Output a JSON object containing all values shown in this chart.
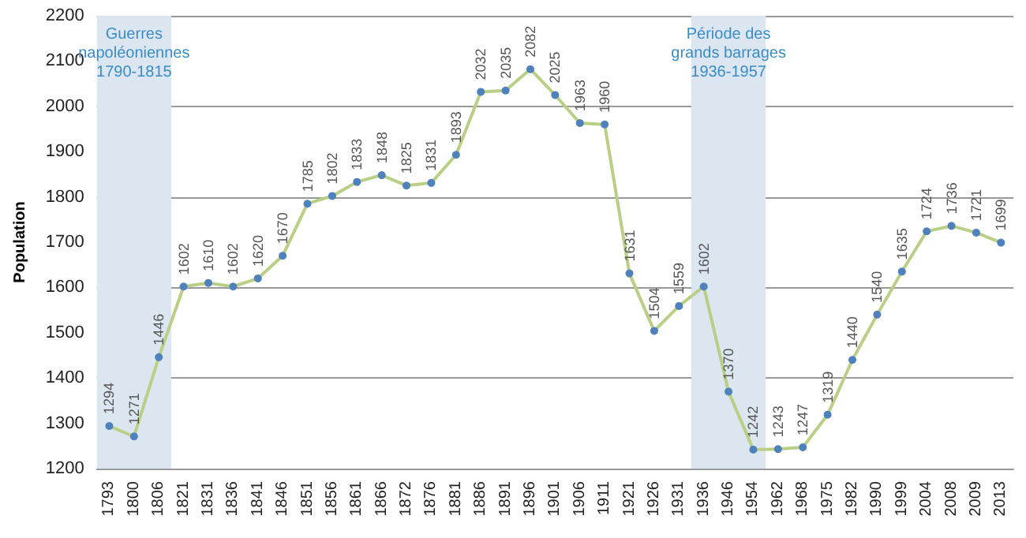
{
  "chart_data": {
    "type": "line",
    "ylabel": "Population",
    "categories": [
      "1793",
      "1800",
      "1806",
      "1821",
      "1831",
      "1836",
      "1841",
      "1846",
      "1851",
      "1856",
      "1861",
      "1866",
      "1872",
      "1876",
      "1881",
      "1886",
      "1891",
      "1896",
      "1901",
      "1906",
      "1911",
      "1921",
      "1926",
      "1931",
      "1936",
      "1946",
      "1954",
      "1962",
      "1968",
      "1975",
      "1982",
      "1990",
      "1999",
      "2004",
      "2008",
      "2009",
      "2013"
    ],
    "series": [
      {
        "color": "#b9cf85",
        "values": [
          1294,
          1271,
          1446,
          1602,
          1610,
          1602,
          1620,
          1670,
          1785,
          1802,
          1833,
          1848,
          1825,
          1831,
          1893,
          2032,
          2035,
          2082,
          2025,
          1963,
          1960,
          1631,
          1504,
          1559,
          1602,
          1370,
          1242,
          1243,
          1247,
          1319,
          1440,
          1540,
          1635,
          1724,
          1736,
          1721,
          1699
        ]
      }
    ],
    "ylim": [
      1200,
      2200
    ],
    "yticks": [
      1200,
      1300,
      1400,
      1500,
      1600,
      1700,
      1800,
      1900,
      2000,
      2100,
      2200
    ],
    "grid": "y",
    "marker": "circle",
    "line_style": "solid",
    "data_labels": true,
    "bands": [
      {
        "axis": "x",
        "from": "1793",
        "to": "1806",
        "label": "Guerres\nnapoléoniennes\n1790-1815",
        "color": "#dce6f1"
      },
      {
        "axis": "x",
        "from": "1936",
        "to": "1954",
        "label": "Période des\ngrands barrages\n1936-1957",
        "color": "#dce6f1"
      }
    ]
  }
}
